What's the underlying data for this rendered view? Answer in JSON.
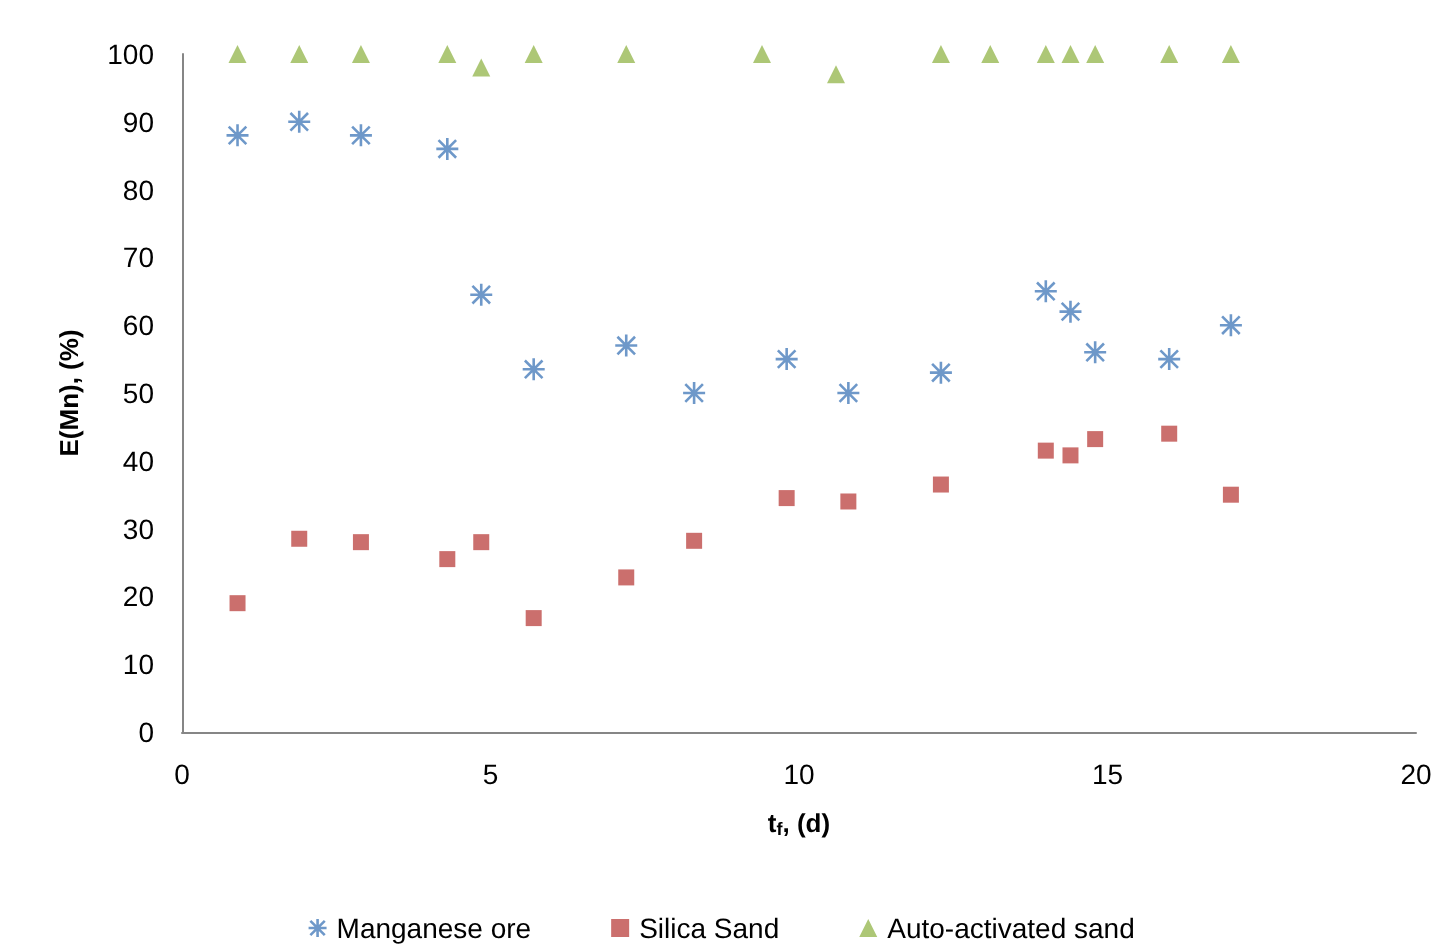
{
  "chart_data": {
    "type": "scatter",
    "xlabel": "t$_{f}$, (d)",
    "ylabel": "E(Mn), (%)",
    "xlim": [
      0,
      20
    ],
    "xticks": [
      0,
      5,
      10,
      15,
      20
    ],
    "ylim": [
      0,
      100
    ],
    "yticks": [
      0,
      10,
      20,
      30,
      40,
      50,
      60,
      70,
      80,
      90,
      100
    ],
    "grid": false,
    "legend": "bottom",
    "series": [
      {
        "name": "Manganese ore",
        "color": "#4a7ebb",
        "marker": "cross",
        "x": [
          0.9,
          1.9,
          2.9,
          4.3,
          4.85,
          5.7,
          7.2,
          8.3,
          9.8,
          10.8,
          12.3,
          14.0,
          14.4,
          14.8,
          16.0,
          17.0
        ],
        "values": [
          88,
          90,
          88,
          86,
          64.5,
          53.5,
          57,
          50,
          55,
          50,
          53,
          65,
          62,
          56,
          55,
          60
        ]
      },
      {
        "name": "Silica Sand",
        "color": "#be4b48",
        "marker": "square",
        "x": [
          0.9,
          1.9,
          2.9,
          4.3,
          4.85,
          5.7,
          7.2,
          8.3,
          9.8,
          10.8,
          12.3,
          14.0,
          14.4,
          14.8,
          16.0,
          17.0
        ],
        "values": [
          19,
          28.5,
          28,
          25.5,
          28,
          16.8,
          22.8,
          28.2,
          34.5,
          34,
          36.5,
          41.5,
          40.8,
          43.2,
          44,
          35
        ]
      },
      {
        "name": "Auto-activated sand",
        "color": "#98b954",
        "marker": "triangle",
        "x": [
          0.9,
          1.9,
          2.9,
          4.3,
          4.85,
          5.7,
          7.2,
          9.4,
          10.6,
          12.3,
          13.1,
          14.0,
          14.4,
          14.8,
          16.0,
          17.0
        ],
        "values": [
          100,
          100,
          100,
          100,
          98,
          100,
          100,
          100,
          97,
          100,
          100,
          100,
          100,
          100,
          100,
          100
        ]
      }
    ]
  }
}
